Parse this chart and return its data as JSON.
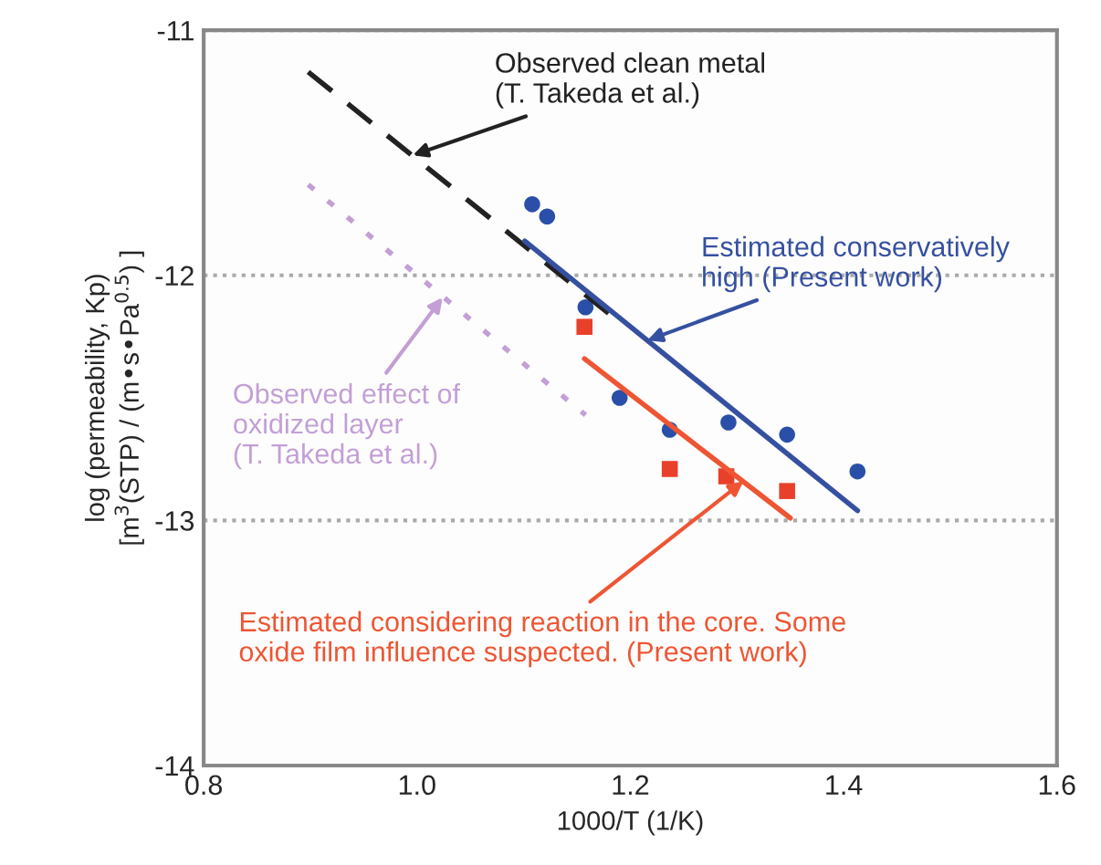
{
  "chart_data": {
    "type": "scatter",
    "xlabel": "1000/T (1/K)",
    "ylabel": "log (permeability, Kp)\n[m$^{3}$(STP) / (m•s•Pa$^{0.5}$) ]",
    "xlim": [
      0.8,
      1.6
    ],
    "xticks": [
      0.8,
      {
        "value": 1.0,
        "label": "1.0"
      },
      1.2,
      1.4,
      1.6
    ],
    "ylim": [
      -14,
      -11
    ],
    "yticks": [
      -14,
      -13,
      -12,
      -11
    ],
    "grid": "y",
    "series": [
      {
        "type": "line",
        "color": "#222222",
        "line_style": "dashed",
        "x": [
          0.898,
          1.181
        ],
        "values": [
          -11.17,
          -12.16
        ]
      },
      {
        "type": "line",
        "color": "#c39fd6",
        "line_style": "dotted",
        "x": [
          0.898,
          1.158
        ],
        "values": [
          -11.63,
          -12.57
        ]
      },
      {
        "type": "line",
        "color": "#3550a0",
        "line_style": "solid",
        "x": [
          1.101,
          1.413
        ],
        "values": [
          -11.86,
          -12.96
        ]
      },
      {
        "type": "line",
        "color": "#ee5533",
        "line_style": "solid",
        "x": [
          1.157,
          1.35
        ],
        "values": [
          -12.34,
          -12.99
        ]
      },
      {
        "color": "#2a4fa8",
        "marker": "circle",
        "x": [
          1.108,
          1.122,
          1.158,
          1.19,
          1.237,
          1.292,
          1.347,
          1.413
        ],
        "values": [
          -11.71,
          -11.76,
          -12.13,
          -12.5,
          -12.63,
          -12.6,
          -12.65,
          -12.8
        ]
      },
      {
        "color": "#e8402a",
        "marker": "square",
        "x": [
          1.157,
          1.237,
          1.29,
          1.347
        ],
        "values": [
          -12.21,
          -12.79,
          -12.82,
          -12.88
        ]
      }
    ],
    "annotations": [
      {
        "text": "Observed clean metal\n(T. Takeda et al.)",
        "x": 0.996,
        "y": -11.51
      },
      {
        "text": "Estimated conservatively\nhigh (Present work)",
        "x": 1.216,
        "y": -12.265
      },
      {
        "text": "Observed effect of\noxidized layer\n(T. Takeda et al.)",
        "x": 1.024,
        "y": -12.09
      },
      {
        "text": "Estimated considering reaction in the core. Some\noxide film influence suspected. (Present work)",
        "x": 1.306,
        "y": -12.84
      }
    ]
  }
}
